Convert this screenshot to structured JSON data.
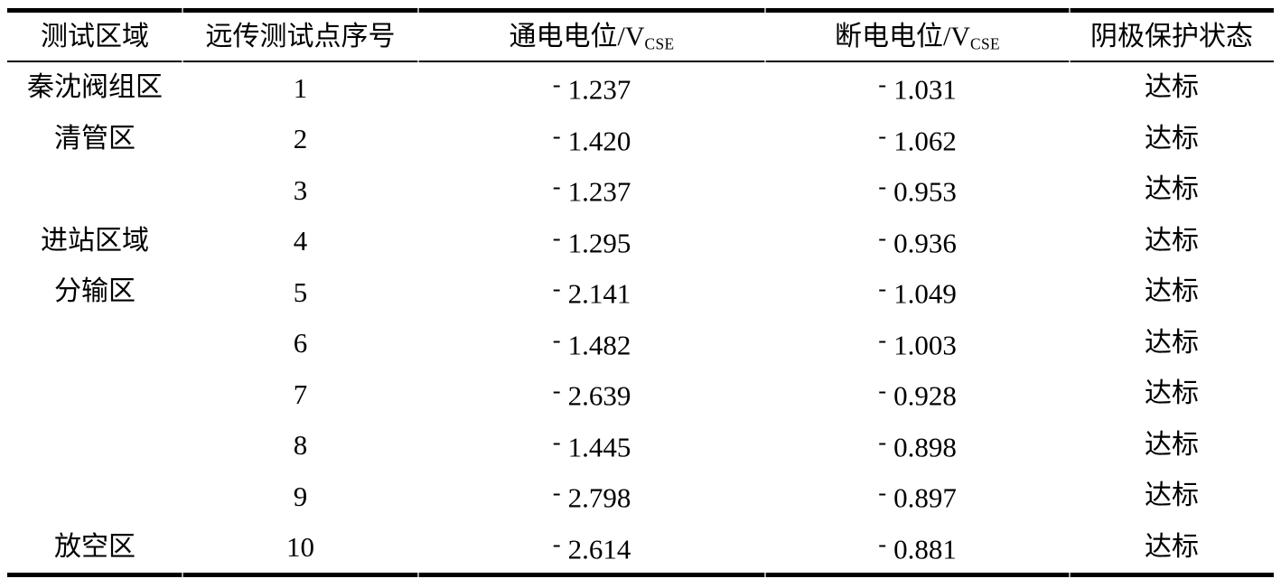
{
  "table": {
    "columns": [
      {
        "key": "area",
        "label": "测试区域"
      },
      {
        "key": "point",
        "label": "远传测试点序号"
      },
      {
        "key": "on_potential",
        "label_prefix": "通电电位/V",
        "label_sub": "CSE"
      },
      {
        "key": "off_potential",
        "label_prefix": "断电电位/V",
        "label_sub": "CSE"
      },
      {
        "key": "status",
        "label": "阴极保护状态"
      }
    ],
    "rows": [
      {
        "area": "秦沈阀组区",
        "point": "1",
        "on_potential": "-1.237",
        "off_potential": "-1.031",
        "status": "达标"
      },
      {
        "area": "清管区",
        "point": "2",
        "on_potential": "-1.420",
        "off_potential": "-1.062",
        "status": "达标"
      },
      {
        "area": "",
        "point": "3",
        "on_potential": "-1.237",
        "off_potential": "-0.953",
        "status": "达标"
      },
      {
        "area": "进站区域",
        "point": "4",
        "on_potential": "-1.295",
        "off_potential": "-0.936",
        "status": "达标"
      },
      {
        "area": "分输区",
        "point": "5",
        "on_potential": "-2.141",
        "off_potential": "-1.049",
        "status": "达标"
      },
      {
        "area": "",
        "point": "6",
        "on_potential": "-1.482",
        "off_potential": "-1.003",
        "status": "达标"
      },
      {
        "area": "",
        "point": "7",
        "on_potential": "-2.639",
        "off_potential": "-0.928",
        "status": "达标"
      },
      {
        "area": "",
        "point": "8",
        "on_potential": "-1.445",
        "off_potential": "-0.898",
        "status": "达标"
      },
      {
        "area": "",
        "point": "9",
        "on_potential": "-2.798",
        "off_potential": "-0.897",
        "status": "达标"
      },
      {
        "area": "放空区",
        "point": "10",
        "on_potential": "-2.614",
        "off_potential": "-0.881",
        "status": "达标"
      }
    ]
  },
  "colors": {
    "text": "#000000",
    "background": "#ffffff",
    "border": "#000000"
  }
}
